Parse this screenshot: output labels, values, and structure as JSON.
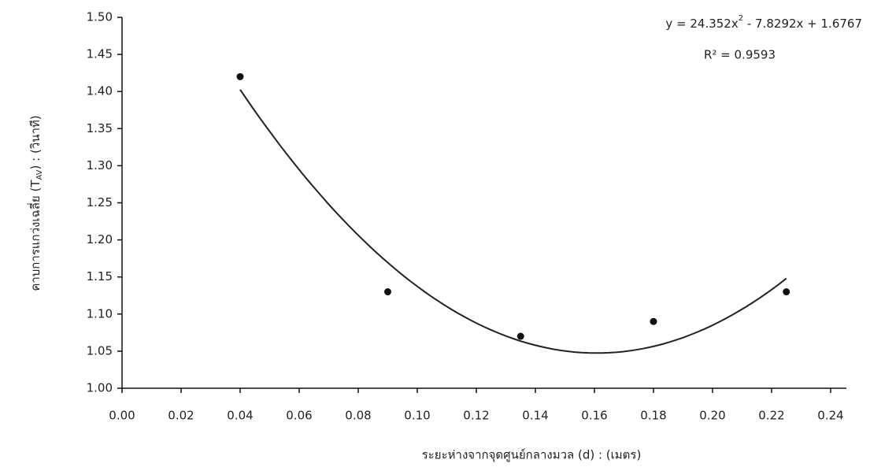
{
  "chart_data": {
    "type": "scatter",
    "x_label": "ระยะห่างจากจุดศูนย์กลางมวล (d) :  (เมตร)",
    "y_label": [
      "คาบการแกว่งเฉลี่ย (T",
      "AV",
      ") : (วินาที)"
    ],
    "equation": [
      "y = 24.352x",
      "2",
      " - 7.8292x + 1.6767"
    ],
    "r_squared": "R² = 0.9593",
    "x": [
      0.04,
      0.09,
      0.135,
      0.18,
      0.225
    ],
    "values": [
      1.42,
      1.13,
      1.07,
      1.09,
      1.13
    ],
    "color": "#111111",
    "trendline": {
      "type": "poly2",
      "coefficients": [
        24.352,
        -7.8292,
        1.6767
      ],
      "color": "#222222"
    },
    "xlim": [
      0,
      0.24
    ],
    "ylim": [
      1.0,
      1.5
    ],
    "xticks": [
      {
        "value": 0,
        "label": "0.00"
      },
      0.02,
      0.04,
      0.06,
      0.08,
      {
        "value": 0.1,
        "label": "0.10"
      },
      0.12,
      0.14,
      0.16,
      0.18,
      {
        "value": 0.2,
        "label": "0.20"
      },
      0.22,
      0.24
    ],
    "yticks": [
      {
        "value": 1.0,
        "label": "1.00"
      },
      1.05,
      {
        "value": 1.1,
        "label": "1.10"
      },
      1.15,
      {
        "value": 1.2,
        "label": "1.20"
      },
      1.25,
      {
        "value": 1.3,
        "label": "1.30"
      },
      1.35,
      {
        "value": 1.4,
        "label": "1.40"
      },
      1.45,
      {
        "value": 1.5,
        "label": "1.50"
      }
    ],
    "grid": false
  }
}
